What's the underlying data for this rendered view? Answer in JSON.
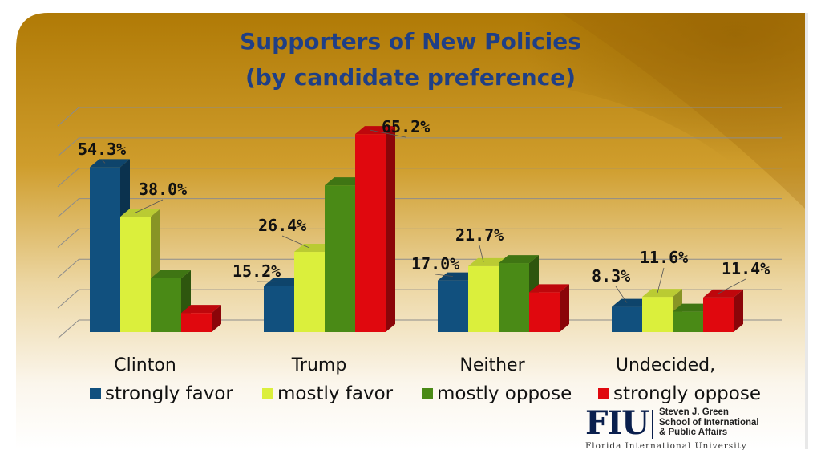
{
  "title_lines": [
    "Supporters of New Policies",
    "(by candidate preference)"
  ],
  "colors": {
    "background_top": "#b8860b",
    "background_bottom": "#ffffff",
    "title": "#1f3f86",
    "series": [
      "#11507e",
      "#dbef3c",
      "#4a8a16",
      "#e0080e"
    ]
  },
  "chart_data": {
    "type": "bar",
    "three_d": true,
    "categories": [
      "Clinton",
      "Trump",
      "Neither",
      "Undecided,"
    ],
    "series": [
      {
        "name": "strongly favor",
        "values": [
          54.3,
          15.2,
          17.0,
          8.3
        ]
      },
      {
        "name": "mostly favor",
        "values": [
          38.0,
          26.4,
          21.7,
          11.6
        ]
      },
      {
        "name": "mostly oppose",
        "values": [
          null,
          null,
          null,
          null
        ]
      },
      {
        "name": "strongly oppose",
        "values": [
          null,
          65.2,
          null,
          11.4
        ]
      }
    ],
    "estimated_unlabeled_values": {
      "mostly oppose": [
        17.7,
        48.3,
        22.7,
        6.7
      ],
      "strongly oppose": [
        6.3,
        null,
        13.1,
        null
      ]
    },
    "data_labels": [
      {
        "text": "54.3%",
        "series": 0,
        "category": 0
      },
      {
        "text": "38.0%",
        "series": 1,
        "category": 0
      },
      {
        "text": "15.2%",
        "series": 0,
        "category": 1
      },
      {
        "text": "26.4%",
        "series": 1,
        "category": 1
      },
      {
        "text": "65.2%",
        "series": 3,
        "category": 1
      },
      {
        "text": "17.0%",
        "series": 0,
        "category": 2
      },
      {
        "text": "21.7%",
        "series": 1,
        "category": 2
      },
      {
        "text": "8.3%",
        "series": 0,
        "category": 3
      },
      {
        "text": "11.6%",
        "series": 1,
        "category": 3
      },
      {
        "text": "11.4%",
        "series": 3,
        "category": 3
      }
    ],
    "ylim": [
      0,
      70
    ],
    "grid": true,
    "legend_position": "bottom"
  },
  "logo": {
    "mark": "FIU",
    "lines": [
      "Steven J. Green",
      "School of International",
      "& Public Affairs"
    ],
    "subtitle": "Florida International University"
  }
}
